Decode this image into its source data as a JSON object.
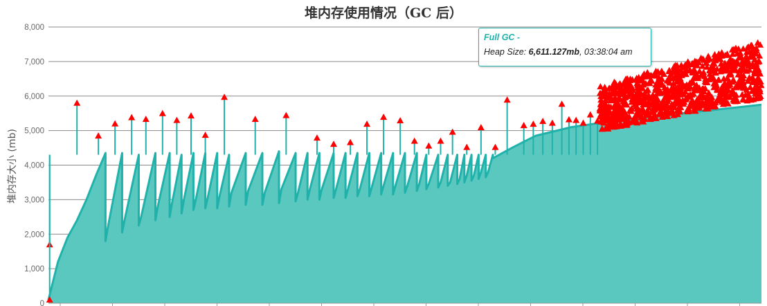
{
  "colors": {
    "area_fill": "#5bc8bf",
    "line": "#20b2aa",
    "marker": "#ff0000",
    "grid": "#8a8a8a",
    "axis_text": "#666666"
  },
  "chart_data": {
    "type": "area",
    "title": "堆内存使用情况（GC 后）",
    "xlabel": "",
    "ylabel": "堆内存大小 (mb)",
    "ylim": [
      0,
      8000
    ],
    "yticks": [
      0,
      1000,
      2000,
      3000,
      4000,
      5000,
      6000,
      7000,
      8000
    ],
    "ytick_labels": [
      "0",
      "1,000",
      "2,000",
      "3,000",
      "4,000",
      "5,000",
      "6,000",
      "7,000",
      "8,000"
    ],
    "grid": true,
    "legend": "none",
    "series": [
      {
        "kind": "area",
        "description": "heap after GC — sawtooth cycles",
        "cycles": [
          {
            "x": [
              0,
              4,
              8,
              12,
              16,
              20,
              24
            ],
            "y": [
              100,
              1200,
              1900,
              2400,
              3000,
              3700,
              4350
            ]
          },
          {
            "x": [
              24,
              25,
              31
            ],
            "y": [
              1800,
              2200,
              4350
            ]
          },
          {
            "x": [
              31,
              32,
              38
            ],
            "y": [
              2050,
              2400,
              4300
            ]
          },
          {
            "x": [
              38,
              39,
              45
            ],
            "y": [
              2250,
              2500,
              4350
            ]
          },
          {
            "x": [
              45,
              46,
              51
            ],
            "y": [
              2400,
              2800,
              4350
            ]
          },
          {
            "x": [
              51,
              52,
              56
            ],
            "y": [
              2500,
              2900,
              4300
            ]
          },
          {
            "x": [
              56,
              57,
              61
            ],
            "y": [
              2600,
              3000,
              4350
            ]
          },
          {
            "x": [
              61,
              62,
              66
            ],
            "y": [
              2700,
              3000,
              4350
            ]
          },
          {
            "x": [
              66,
              67,
              71
            ],
            "y": [
              2750,
              3050,
              4350
            ]
          },
          {
            "x": [
              71,
              72,
              76
            ],
            "y": [
              2750,
              3100,
              4300
            ]
          },
          {
            "x": [
              76,
              77,
              83
            ],
            "y": [
              2800,
              3200,
              4350
            ]
          },
          {
            "x": [
              83,
              84,
              90
            ],
            "y": [
              2850,
              3250,
              4350
            ]
          },
          {
            "x": [
              90,
              91,
              97
            ],
            "y": [
              2850,
              3200,
              4400
            ]
          },
          {
            "x": [
              97,
              98,
              104
            ],
            "y": [
              2900,
              3300,
              4350
            ]
          },
          {
            "x": [
              104,
              105,
              109
            ],
            "y": [
              2950,
              3200,
              4350
            ]
          },
          {
            "x": [
              109,
              110,
              114
            ],
            "y": [
              3000,
              3300,
              4350
            ]
          },
          {
            "x": [
              114,
              115,
              120
            ],
            "y": [
              3000,
              3300,
              4350
            ]
          },
          {
            "x": [
              120,
              121,
              125
            ],
            "y": [
              3050,
              3300,
              4350
            ]
          },
          {
            "x": [
              125,
              126,
              130
            ],
            "y": [
              3050,
              3300,
              4350
            ]
          },
          {
            "x": [
              130,
              131,
              135
            ],
            "y": [
              3100,
              3300,
              4350
            ]
          },
          {
            "x": [
              135,
              136,
              140
            ],
            "y": [
              3100,
              3350,
              4350
            ]
          },
          {
            "x": [
              140,
              141,
              145
            ],
            "y": [
              3150,
              3400,
              4350
            ]
          },
          {
            "x": [
              145,
              146,
              150
            ],
            "y": [
              3150,
              3400,
              4350
            ]
          },
          {
            "x": [
              150,
              151,
              155
            ],
            "y": [
              3200,
              3400,
              4350
            ]
          },
          {
            "x": [
              155,
              156,
              159
            ],
            "y": [
              3250,
              3450,
              4300
            ]
          },
          {
            "x": [
              159,
              160,
              164
            ],
            "y": [
              3300,
              3450,
              4300
            ]
          },
          {
            "x": [
              164,
              165,
              168
            ],
            "y": [
              3350,
              3500,
              4300
            ]
          },
          {
            "x": [
              168,
              169,
              172
            ],
            "y": [
              3400,
              3500,
              4300
            ]
          },
          {
            "x": [
              172,
              173,
              175
            ],
            "y": [
              3450,
              3600,
              4300
            ]
          },
          {
            "x": [
              175,
              176,
              178
            ],
            "y": [
              3500,
              3700,
              4300
            ]
          },
          {
            "x": [
              178,
              179,
              181
            ],
            "y": [
              3550,
              3700,
              4300
            ]
          },
          {
            "x": [
              181,
              182,
              184
            ],
            "y": [
              3600,
              3800,
              4300
            ]
          },
          {
            "x": [
              184,
              185,
              187
            ],
            "y": [
              3650,
              3800,
              4300
            ]
          },
          {
            "x": [
              187,
              195,
              205,
              220,
              240,
              260,
              280,
              300
            ],
            "y": [
              4200,
              4500,
              4850,
              5100,
              5300,
              5450,
              5600,
              5750
            ]
          }
        ]
      },
      {
        "kind": "markers",
        "name": "Full GC",
        "points": [
          {
            "x": 0.5,
            "y": 1700
          },
          {
            "x": 0.5,
            "y": 100
          },
          {
            "x": 12,
            "y": 5800
          },
          {
            "x": 21,
            "y": 4850
          },
          {
            "x": 28,
            "y": 5200
          },
          {
            "x": 35,
            "y": 5380
          },
          {
            "x": 41,
            "y": 5330
          },
          {
            "x": 48,
            "y": 5500
          },
          {
            "x": 54,
            "y": 5300
          },
          {
            "x": 60,
            "y": 5430
          },
          {
            "x": 66,
            "y": 4870
          },
          {
            "x": 74,
            "y": 5970
          },
          {
            "x": 87,
            "y": 5330
          },
          {
            "x": 100,
            "y": 5440
          },
          {
            "x": 113,
            "y": 4790
          },
          {
            "x": 120,
            "y": 4610
          },
          {
            "x": 127,
            "y": 4660
          },
          {
            "x": 134,
            "y": 5190
          },
          {
            "x": 141,
            "y": 5390
          },
          {
            "x": 148,
            "y": 5290
          },
          {
            "x": 154,
            "y": 4700
          },
          {
            "x": 160,
            "y": 4560
          },
          {
            "x": 165,
            "y": 4700
          },
          {
            "x": 170,
            "y": 4960
          },
          {
            "x": 176,
            "y": 4520
          },
          {
            "x": 182,
            "y": 5090
          },
          {
            "x": 188,
            "y": 4520
          },
          {
            "x": 193,
            "y": 5890
          },
          {
            "x": 200,
            "y": 5150
          },
          {
            "x": 204,
            "y": 5190
          },
          {
            "x": 208,
            "y": 5270
          },
          {
            "x": 212,
            "y": 5220
          },
          {
            "x": 216,
            "y": 5770
          },
          {
            "x": 219,
            "y": 5320
          },
          {
            "x": 222,
            "y": 5300
          },
          {
            "x": 225,
            "y": 5220
          },
          {
            "x": 228,
            "y": 5460
          },
          {
            "x": 231,
            "y": 5280
          }
        ],
        "dense_region": {
          "x_start": 232,
          "x_end": 300,
          "y_low_start": 5000,
          "y_low_end": 5950,
          "y_high_start": 6300,
          "y_high_end": 7600
        }
      }
    ],
    "x_count": 300
  },
  "tooltip": {
    "title": "Full GC -",
    "prefix": "Heap Size: ",
    "value": "6,611.127mb",
    "suffix": ", 03:38:04 am"
  }
}
